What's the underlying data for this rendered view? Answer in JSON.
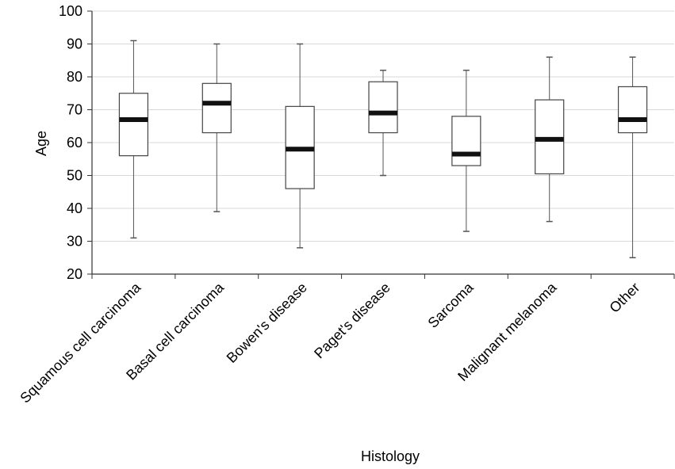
{
  "chart_data": {
    "type": "box",
    "xlabel": "Histology",
    "ylabel": "Age",
    "ylim": [
      20,
      100
    ],
    "yticks": [
      20,
      30,
      40,
      50,
      60,
      70,
      80,
      90,
      100
    ],
    "grid": true,
    "categories": [
      "Squamous cell carcinoma",
      "Basal cell carcinoma",
      "Bowen's disease",
      "Paget's disease",
      "Sarcoma",
      "Malignant melanoma",
      "Other"
    ],
    "boxes": [
      {
        "min": 31,
        "q1": 56,
        "median": 67,
        "q3": 75,
        "max": 91
      },
      {
        "min": 39,
        "q1": 63,
        "median": 72,
        "q3": 78,
        "max": 90
      },
      {
        "min": 28,
        "q1": 46,
        "median": 58,
        "q3": 71,
        "max": 90
      },
      {
        "min": 50,
        "q1": 63,
        "median": 69,
        "q3": 78.5,
        "max": 82
      },
      {
        "min": 33,
        "q1": 53,
        "median": 56.5,
        "q3": 68,
        "max": 82
      },
      {
        "min": 36,
        "q1": 50.5,
        "median": 61,
        "q3": 73,
        "max": 86
      },
      {
        "min": 25,
        "q1": 63,
        "median": 67,
        "q3": 77,
        "max": 86
      }
    ]
  }
}
